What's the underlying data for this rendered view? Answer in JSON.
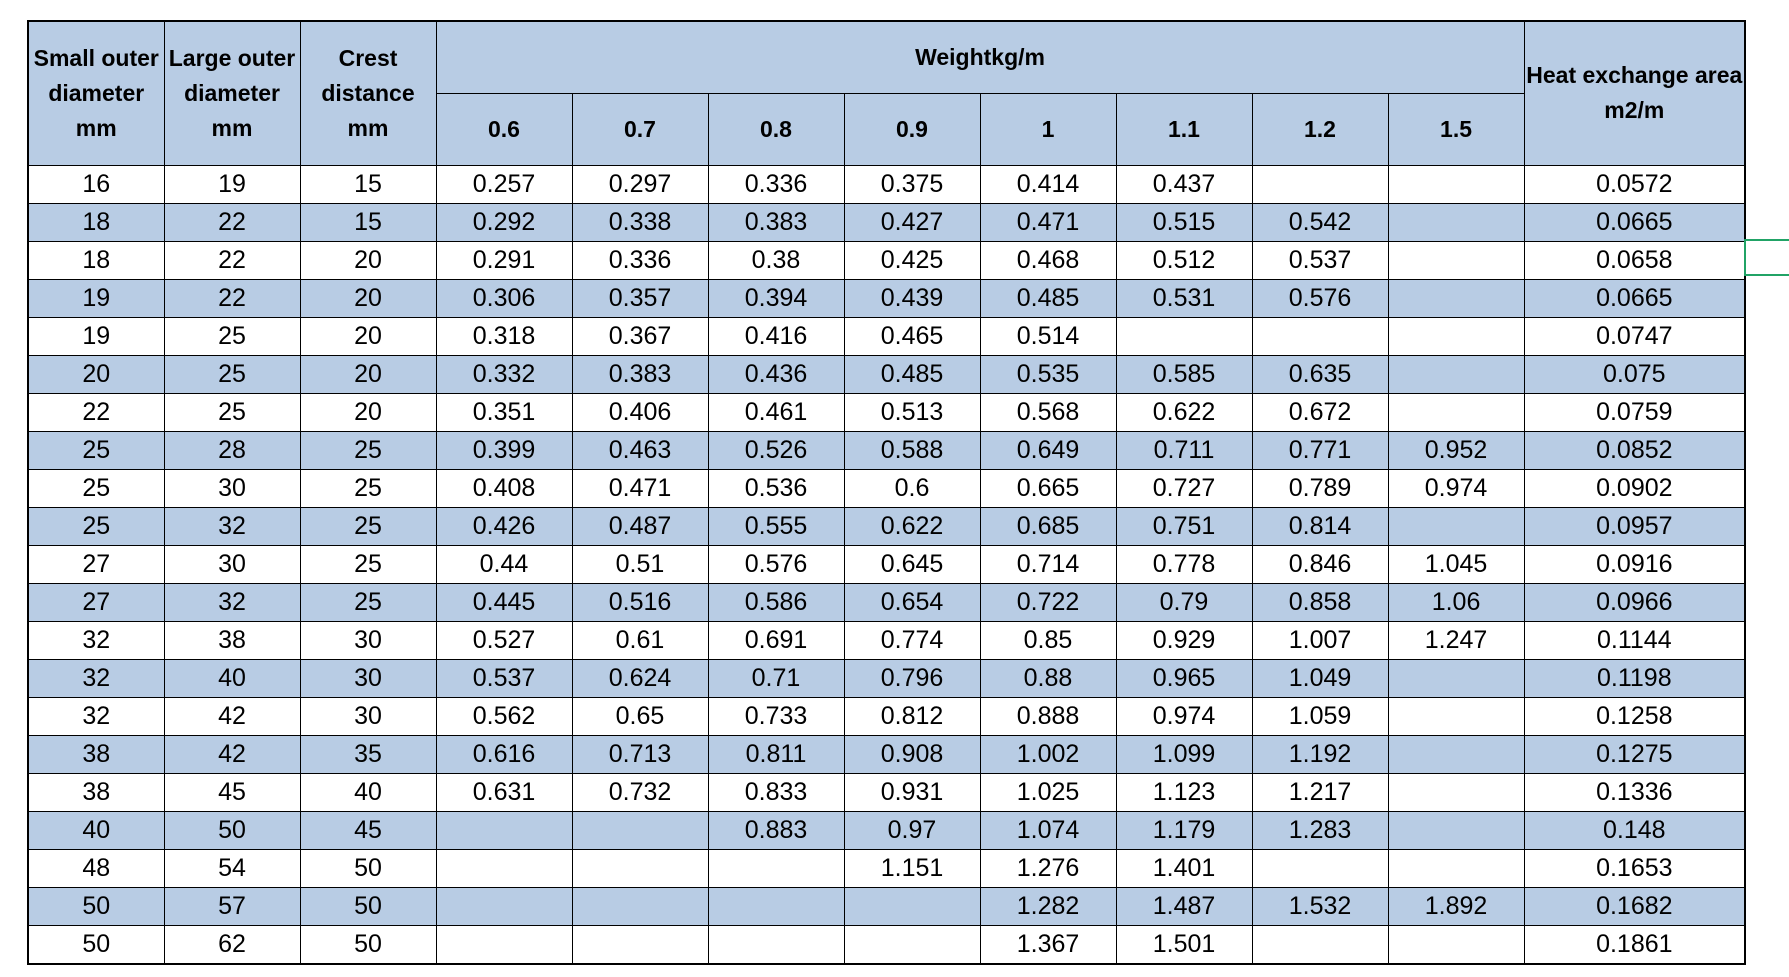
{
  "table": {
    "header": {
      "left": [
        "Small outer diameter mm",
        "Large outer diameter mm",
        "Crest distance mm"
      ],
      "group": "Weightkg/m",
      "weights": [
        "0.6",
        "0.7",
        "0.8",
        "0.9",
        "1",
        "1.1",
        "1.2",
        "1.5"
      ],
      "right": "Heat exchange area m2/m"
    },
    "rows": [
      [
        "16",
        "19",
        "15",
        "0.257",
        "0.297",
        "0.336",
        "0.375",
        "0.414",
        "0.437",
        null,
        null,
        "0.0572"
      ],
      [
        "18",
        "22",
        "15",
        "0.292",
        "0.338",
        "0.383",
        "0.427",
        "0.471",
        "0.515",
        "0.542",
        null,
        "0.0665"
      ],
      [
        "18",
        "22",
        "20",
        "0.291",
        "0.336",
        "0.38",
        "0.425",
        "0.468",
        "0.512",
        "0.537",
        null,
        "0.0658"
      ],
      [
        "19",
        "22",
        "20",
        "0.306",
        "0.357",
        "0.394",
        "0.439",
        "0.485",
        "0.531",
        "0.576",
        null,
        "0.0665"
      ],
      [
        "19",
        "25",
        "20",
        "0.318",
        "0.367",
        "0.416",
        "0.465",
        "0.514",
        null,
        null,
        null,
        "0.0747"
      ],
      [
        "20",
        "25",
        "20",
        "0.332",
        "0.383",
        "0.436",
        "0.485",
        "0.535",
        "0.585",
        "0.635",
        null,
        "0.075"
      ],
      [
        "22",
        "25",
        "20",
        "0.351",
        "0.406",
        "0.461",
        "0.513",
        "0.568",
        "0.622",
        "0.672",
        null,
        "0.0759"
      ],
      [
        "25",
        "28",
        "25",
        "0.399",
        "0.463",
        "0.526",
        "0.588",
        "0.649",
        "0.711",
        "0.771",
        "0.952",
        "0.0852"
      ],
      [
        "25",
        "30",
        "25",
        "0.408",
        "0.471",
        "0.536",
        "0.6",
        "0.665",
        "0.727",
        "0.789",
        "0.974",
        "0.0902"
      ],
      [
        "25",
        "32",
        "25",
        "0.426",
        "0.487",
        "0.555",
        "0.622",
        "0.685",
        "0.751",
        "0.814",
        null,
        "0.0957"
      ],
      [
        "27",
        "30",
        "25",
        "0.44",
        "0.51",
        "0.576",
        "0.645",
        "0.714",
        "0.778",
        "0.846",
        "1.045",
        "0.0916"
      ],
      [
        "27",
        "32",
        "25",
        "0.445",
        "0.516",
        "0.586",
        "0.654",
        "0.722",
        "0.79",
        "0.858",
        "1.06",
        "0.0966"
      ],
      [
        "32",
        "38",
        "30",
        "0.527",
        "0.61",
        "0.691",
        "0.774",
        "0.85",
        "0.929",
        "1.007",
        "1.247",
        "0.1144"
      ],
      [
        "32",
        "40",
        "30",
        "0.537",
        "0.624",
        "0.71",
        "0.796",
        "0.88",
        "0.965",
        "1.049",
        null,
        "0.1198"
      ],
      [
        "32",
        "42",
        "30",
        "0.562",
        "0.65",
        "0.733",
        "0.812",
        "0.888",
        "0.974",
        "1.059",
        null,
        "0.1258"
      ],
      [
        "38",
        "42",
        "35",
        "0.616",
        "0.713",
        "0.811",
        "0.908",
        "1.002",
        "1.099",
        "1.192",
        null,
        "0.1275"
      ],
      [
        "38",
        "45",
        "40",
        "0.631",
        "0.732",
        "0.833",
        "0.931",
        "1.025",
        "1.123",
        "1.217",
        null,
        "0.1336"
      ],
      [
        "40",
        "50",
        "45",
        null,
        null,
        "0.883",
        "0.97",
        "1.074",
        "1.179",
        "1.283",
        null,
        "0.148"
      ],
      [
        "48",
        "54",
        "50",
        null,
        null,
        null,
        "1.151",
        "1.276",
        "1.401",
        null,
        null,
        "0.1653"
      ],
      [
        "50",
        "57",
        "50",
        null,
        null,
        null,
        null,
        "1.282",
        "1.487",
        "1.532",
        "1.892",
        "0.1682"
      ],
      [
        "50",
        "62",
        "50",
        null,
        null,
        null,
        null,
        "1.367",
        "1.501",
        null,
        null,
        "0.1861"
      ]
    ]
  }
}
